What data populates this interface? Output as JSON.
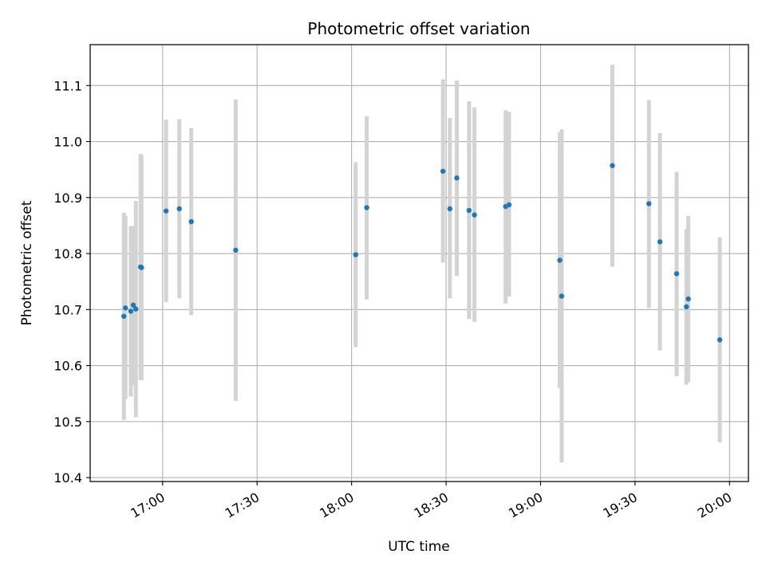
{
  "chart_data": {
    "type": "scatter",
    "title": "Photometric offset variation",
    "xlabel": "UTC time",
    "ylabel": "Photometric offset",
    "xlim": [
      "16:37",
      "20:06"
    ],
    "ylim": [
      10.393,
      11.173
    ],
    "grid": true,
    "x_ticks": [
      "17:00",
      "17:30",
      "18:00",
      "18:30",
      "19:00",
      "19:30",
      "20:00"
    ],
    "y_ticks": [
      "10.4",
      "10.5",
      "10.6",
      "10.7",
      "10.8",
      "10.9",
      "11.0",
      "11.1"
    ],
    "colors": {
      "point": "#1f77b4",
      "error_bar": "#d3d3d3",
      "grid": "#b0b0b0"
    },
    "points": [
      {
        "x": "16:47:42",
        "y": 10.688,
        "low": 10.503,
        "high": 10.873
      },
      {
        "x": "16:48:12",
        "y": 10.703,
        "low": 10.54,
        "high": 10.868
      },
      {
        "x": "16:49:54",
        "y": 10.697,
        "low": 10.545,
        "high": 10.849
      },
      {
        "x": "16:50:42",
        "y": 10.708,
        "low": 10.565,
        "high": 10.849
      },
      {
        "x": "16:51:30",
        "y": 10.701,
        "low": 10.508,
        "high": 10.894
      },
      {
        "x": "16:53:00",
        "y": 10.776,
        "low": 10.574,
        "high": 10.978
      },
      {
        "x": "16:53:18",
        "y": 10.775,
        "low": 10.574,
        "high": 10.976
      },
      {
        "x": "17:01:06",
        "y": 10.876,
        "low": 10.713,
        "high": 11.039
      },
      {
        "x": "17:05:18",
        "y": 10.88,
        "low": 10.72,
        "high": 11.04
      },
      {
        "x": "17:09:06",
        "y": 10.857,
        "low": 10.69,
        "high": 11.024
      },
      {
        "x": "17:23:12",
        "y": 10.806,
        "low": 10.537,
        "high": 11.075
      },
      {
        "x": "18:01:18",
        "y": 10.798,
        "low": 10.633,
        "high": 10.963
      },
      {
        "x": "18:04:48",
        "y": 10.882,
        "low": 10.718,
        "high": 11.045
      },
      {
        "x": "18:29:00",
        "y": 10.947,
        "low": 10.784,
        "high": 11.111
      },
      {
        "x": "18:31:12",
        "y": 10.88,
        "low": 10.72,
        "high": 11.042
      },
      {
        "x": "18:33:24",
        "y": 10.935,
        "low": 10.76,
        "high": 11.109
      },
      {
        "x": "18:37:18",
        "y": 10.877,
        "low": 10.683,
        "high": 11.072
      },
      {
        "x": "18:39:00",
        "y": 10.869,
        "low": 10.678,
        "high": 11.061
      },
      {
        "x": "18:48:54",
        "y": 10.884,
        "low": 10.711,
        "high": 11.056
      },
      {
        "x": "18:50:00",
        "y": 10.887,
        "low": 10.723,
        "high": 11.053
      },
      {
        "x": "19:06:06",
        "y": 10.788,
        "low": 10.56,
        "high": 11.016
      },
      {
        "x": "19:06:42",
        "y": 10.724,
        "low": 10.427,
        "high": 11.022
      },
      {
        "x": "19:22:48",
        "y": 10.957,
        "low": 10.777,
        "high": 11.137
      },
      {
        "x": "19:34:24",
        "y": 10.889,
        "low": 10.703,
        "high": 11.074
      },
      {
        "x": "19:37:54",
        "y": 10.821,
        "low": 10.627,
        "high": 11.015
      },
      {
        "x": "19:43:12",
        "y": 10.764,
        "low": 10.581,
        "high": 10.946
      },
      {
        "x": "19:46:18",
        "y": 10.705,
        "low": 10.566,
        "high": 10.844
      },
      {
        "x": "19:46:54",
        "y": 10.719,
        "low": 10.571,
        "high": 10.867
      },
      {
        "x": "19:56:54",
        "y": 10.646,
        "low": 10.463,
        "high": 10.829
      }
    ]
  }
}
